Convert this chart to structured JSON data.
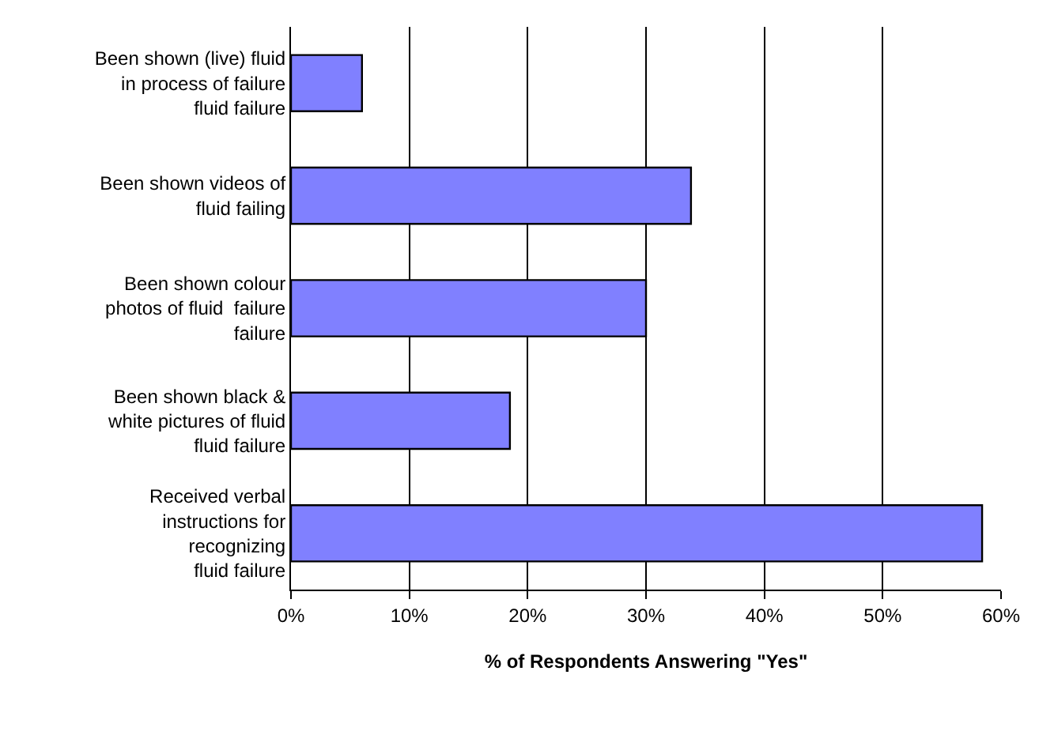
{
  "chart_data": {
    "type": "bar",
    "orientation": "horizontal",
    "xlabel": "% of Respondents Answering \"Yes\"",
    "categories": [
      "Been shown (live) fluid\nin process of failure\nfluid failure",
      "Been shown videos of\nfluid failing",
      "Been shown colour\nphotos of fluid  failure\nfailure",
      "Been shown black &\nwhite pictures of fluid\nfluid failure",
      "Received verbal\ninstructions for\nrecognizing\nfluid failure"
    ],
    "values": [
      6.0,
      33.8,
      30.0,
      18.5,
      58.4
    ],
    "color": "#8080ff",
    "xlim": [
      0,
      60
    ],
    "xticks": [
      {
        "value": 0,
        "label": "0%"
      },
      {
        "value": 10,
        "label": "10%"
      },
      {
        "value": 20,
        "label": "20%"
      },
      {
        "value": 30,
        "label": "30%"
      },
      {
        "value": 40,
        "label": "40%"
      },
      {
        "value": 50,
        "label": "50%"
      },
      {
        "value": 60,
        "label": "60%"
      }
    ],
    "grid": "x",
    "legend": false
  }
}
